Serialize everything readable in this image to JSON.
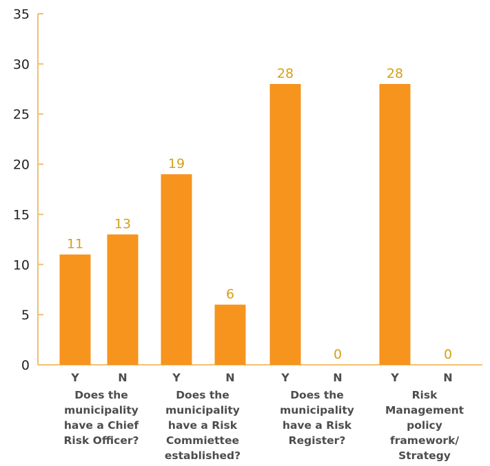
{
  "chart_data": {
    "type": "bar",
    "ylim": [
      0,
      35
    ],
    "yticks": [
      0,
      5,
      10,
      15,
      20,
      25,
      30,
      35
    ],
    "grid": false,
    "groups": [
      {
        "lines": [
          "Does the",
          "municipality",
          "have a Chief",
          "Risk Officer?"
        ],
        "bars": [
          {
            "category": "Y",
            "value": 11
          },
          {
            "category": "N",
            "value": 13
          }
        ]
      },
      {
        "lines": [
          "Does the",
          "municipality",
          "have a Risk",
          "Commiettee",
          "established?"
        ],
        "bars": [
          {
            "category": "Y",
            "value": 19
          },
          {
            "category": "N",
            "value": 6
          }
        ]
      },
      {
        "lines": [
          "Does the",
          "municipality",
          "have a Risk",
          "Register?"
        ],
        "bars": [
          {
            "category": "Y",
            "value": 28
          },
          {
            "category": "N",
            "value": 0
          }
        ]
      },
      {
        "lines": [
          "Risk",
          "Management",
          "policy",
          "framework/",
          "Strategy"
        ],
        "bars": [
          {
            "category": "Y",
            "value": 28
          },
          {
            "category": "N",
            "value": 0
          }
        ]
      }
    ]
  },
  "colors": {
    "bar": "#f7941d",
    "value_label": "#d4a017",
    "axis": "#f0c070",
    "text": "#4d4d4f"
  }
}
